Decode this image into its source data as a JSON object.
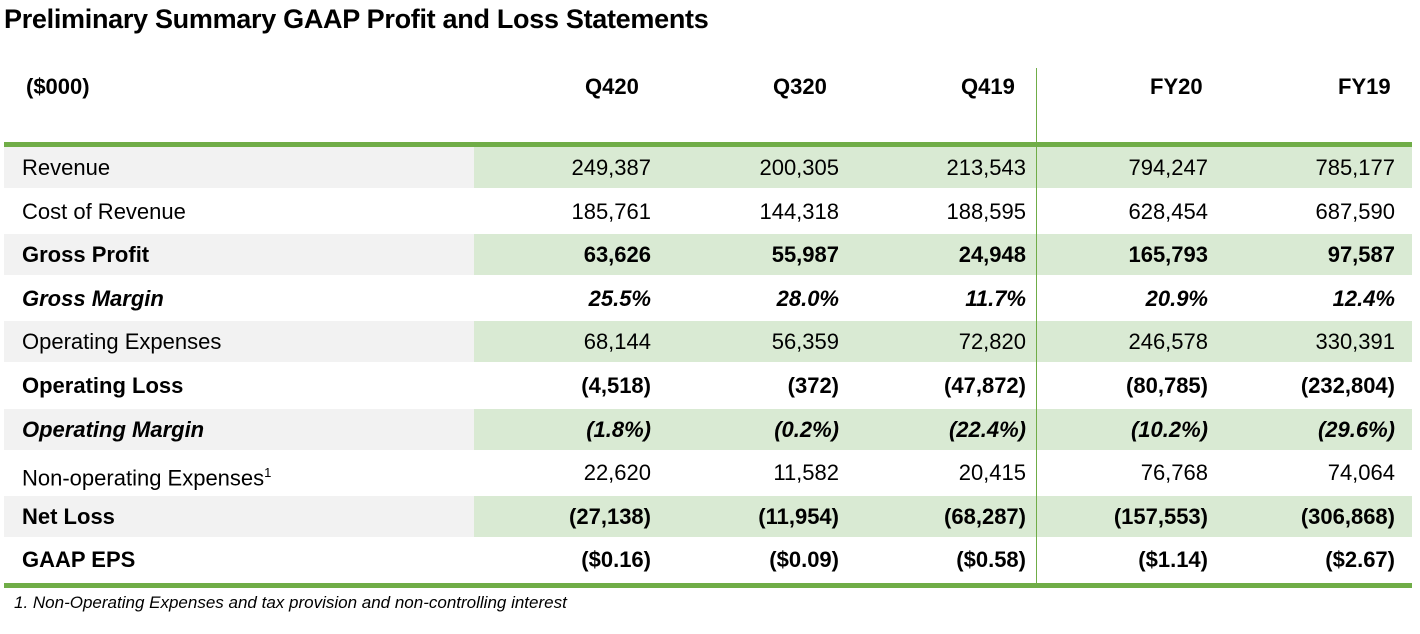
{
  "title": "Preliminary Summary GAAP Profit and Loss Statements",
  "table": {
    "unit_label": "($000)",
    "columns": [
      "Q420",
      "Q320",
      "Q419",
      "FY20",
      "FY19"
    ],
    "rows": [
      {
        "label": "Revenue",
        "footnote": "",
        "style": "normal",
        "shaded": true,
        "values": [
          "249,387",
          "200,305",
          "213,543",
          "794,247",
          "785,177"
        ]
      },
      {
        "label": "Cost of Revenue",
        "footnote": "",
        "style": "normal",
        "shaded": false,
        "values": [
          "185,761",
          "144,318",
          "188,595",
          "628,454",
          "687,590"
        ]
      },
      {
        "label": "Gross Profit",
        "footnote": "",
        "style": "bold",
        "shaded": true,
        "values": [
          "63,626",
          "55,987",
          "24,948",
          "165,793",
          "97,587"
        ]
      },
      {
        "label": "Gross Margin",
        "footnote": "",
        "style": "italicbold",
        "shaded": false,
        "values": [
          "25.5%",
          "28.0%",
          "11.7%",
          "20.9%",
          "12.4%"
        ]
      },
      {
        "label": "Operating Expenses",
        "footnote": "",
        "style": "normal",
        "shaded": true,
        "values": [
          "68,144",
          "56,359",
          "72,820",
          "246,578",
          "330,391"
        ]
      },
      {
        "label": "Operating Loss",
        "footnote": "",
        "style": "bold",
        "shaded": false,
        "values": [
          "(4,518)",
          "(372)",
          "(47,872)",
          "(80,785)",
          "(232,804)"
        ]
      },
      {
        "label": "Operating Margin",
        "footnote": "",
        "style": "italicbold",
        "shaded": true,
        "values": [
          "(1.8%)",
          "(0.2%)",
          "(22.4%)",
          "(10.2%)",
          "(29.6%)"
        ]
      },
      {
        "label": "Non-operating Expenses",
        "footnote": "1",
        "style": "normal",
        "shaded": false,
        "values": [
          "22,620",
          "11,582",
          "20,415",
          "76,768",
          "74,064"
        ]
      },
      {
        "label": "Net Loss",
        "footnote": "",
        "style": "bold",
        "shaded": true,
        "values": [
          "(27,138)",
          "(11,954)",
          "(68,287)",
          "(157,553)",
          "(306,868)"
        ]
      },
      {
        "label": "GAAP EPS",
        "footnote": "",
        "style": "bold",
        "shaded": false,
        "values": [
          "($0.16)",
          "($0.09)",
          "($0.58)",
          "($1.14)",
          "($2.67)"
        ]
      }
    ]
  },
  "footnote": "1. Non-Operating Expenses and tax provision and non-controlling interest",
  "colors": {
    "accent_green": "#70ad47",
    "shaded_value_bg": "#d9ead3",
    "shaded_label_bg": "#f2f2f2"
  }
}
